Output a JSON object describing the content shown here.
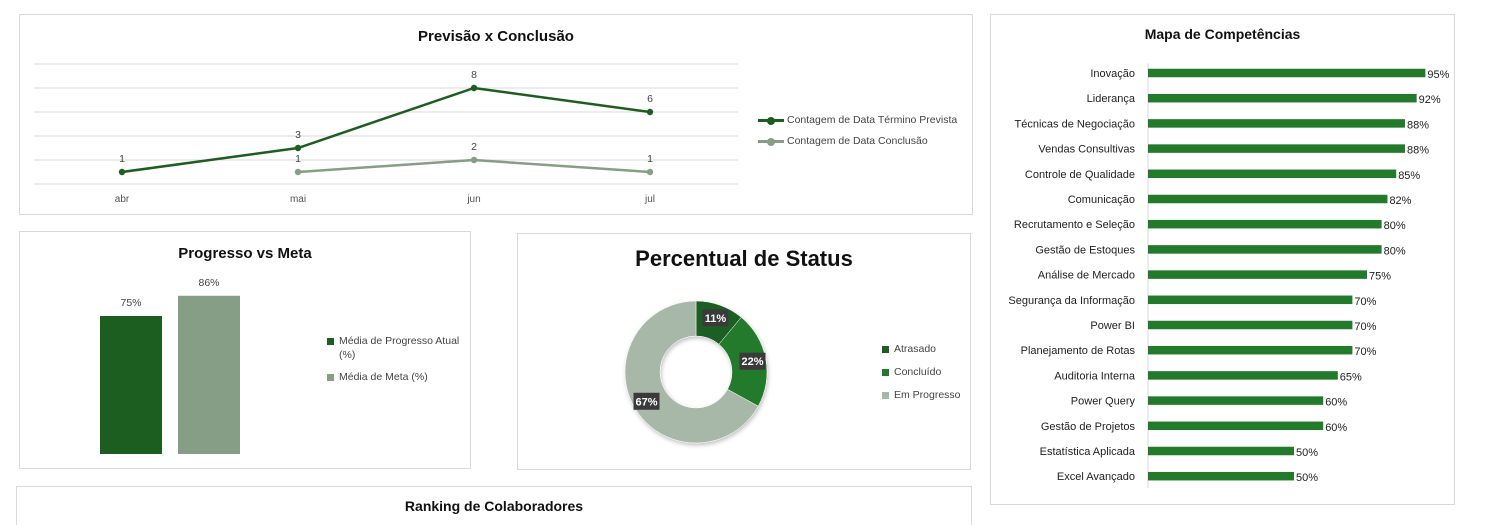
{
  "colors": {
    "dark_green": "#1b5e20",
    "light_green": "#869e86",
    "mid_green": "#237a2b",
    "pale_green": "#a8b8a8",
    "bar_green": "#237a2b",
    "grid": "#d9d9d9"
  },
  "ranking": {
    "title": "Ranking de Colaboradores"
  },
  "chart_data": [
    {
      "type": "line",
      "title": "Previsão x Conclusão",
      "categories": [
        "abr",
        "mai",
        "jun",
        "jul"
      ],
      "series": [
        {
          "name": "Contagem de Data Término Prevista",
          "values": [
            1,
            3,
            8,
            6
          ],
          "color": "#1b5e20"
        },
        {
          "name": "Contagem de Data Conclusão",
          "values": [
            null,
            1,
            2,
            1
          ],
          "color": "#869e86"
        }
      ],
      "ylim": [
        0,
        10
      ],
      "grid": true,
      "legend": "right"
    },
    {
      "type": "bar",
      "title": "Progresso vs Meta",
      "categories": [
        ""
      ],
      "series": [
        {
          "name": "Média de Progresso Atual (%)",
          "values": [
            75
          ],
          "label": "75%",
          "color": "#1b5e20"
        },
        {
          "name": "Média de Meta (%)",
          "values": [
            86
          ],
          "label": "86%",
          "color": "#869e86"
        }
      ],
      "ylim": [
        0,
        100
      ],
      "legend": "right"
    },
    {
      "type": "pie",
      "title": "Percentual de Status",
      "donut": true,
      "slices": [
        {
          "label": "Atrasado",
          "value": 11,
          "text": "11%",
          "color": "#1b5e20"
        },
        {
          "label": "Concluído",
          "value": 22,
          "text": "22%",
          "color": "#237a2b"
        },
        {
          "label": "Em Progresso",
          "value": 67,
          "text": "67%",
          "color": "#a8b8a8"
        }
      ],
      "legend": "right"
    },
    {
      "type": "bar",
      "orientation": "horizontal",
      "title": "Mapa de Competências",
      "categories": [
        "Inovação",
        "Liderança",
        "Técnicas de Negociação",
        "Vendas Consultivas",
        "Controle de Qualidade",
        "Comunicação",
        "Recrutamento e Seleção",
        "Gestão de Estoques",
        "Análise de Mercado",
        "Segurança da Informação",
        "Power BI",
        "Planejamento de Rotas",
        "Auditoria Interna",
        "Power Query",
        "Gestão de Projetos",
        "Estatística Aplicada",
        "Excel Avançado"
      ],
      "values": [
        95,
        92,
        88,
        88,
        85,
        82,
        80,
        80,
        75,
        70,
        70,
        70,
        65,
        60,
        60,
        50,
        50
      ],
      "labels": [
        "95%",
        "92%",
        "88%",
        "88%",
        "85%",
        "82%",
        "80%",
        "80%",
        "75%",
        "70%",
        "70%",
        "70%",
        "65%",
        "60%",
        "60%",
        "50%",
        "50%"
      ],
      "xlim": [
        0,
        100
      ],
      "color": "#237a2b"
    }
  ]
}
